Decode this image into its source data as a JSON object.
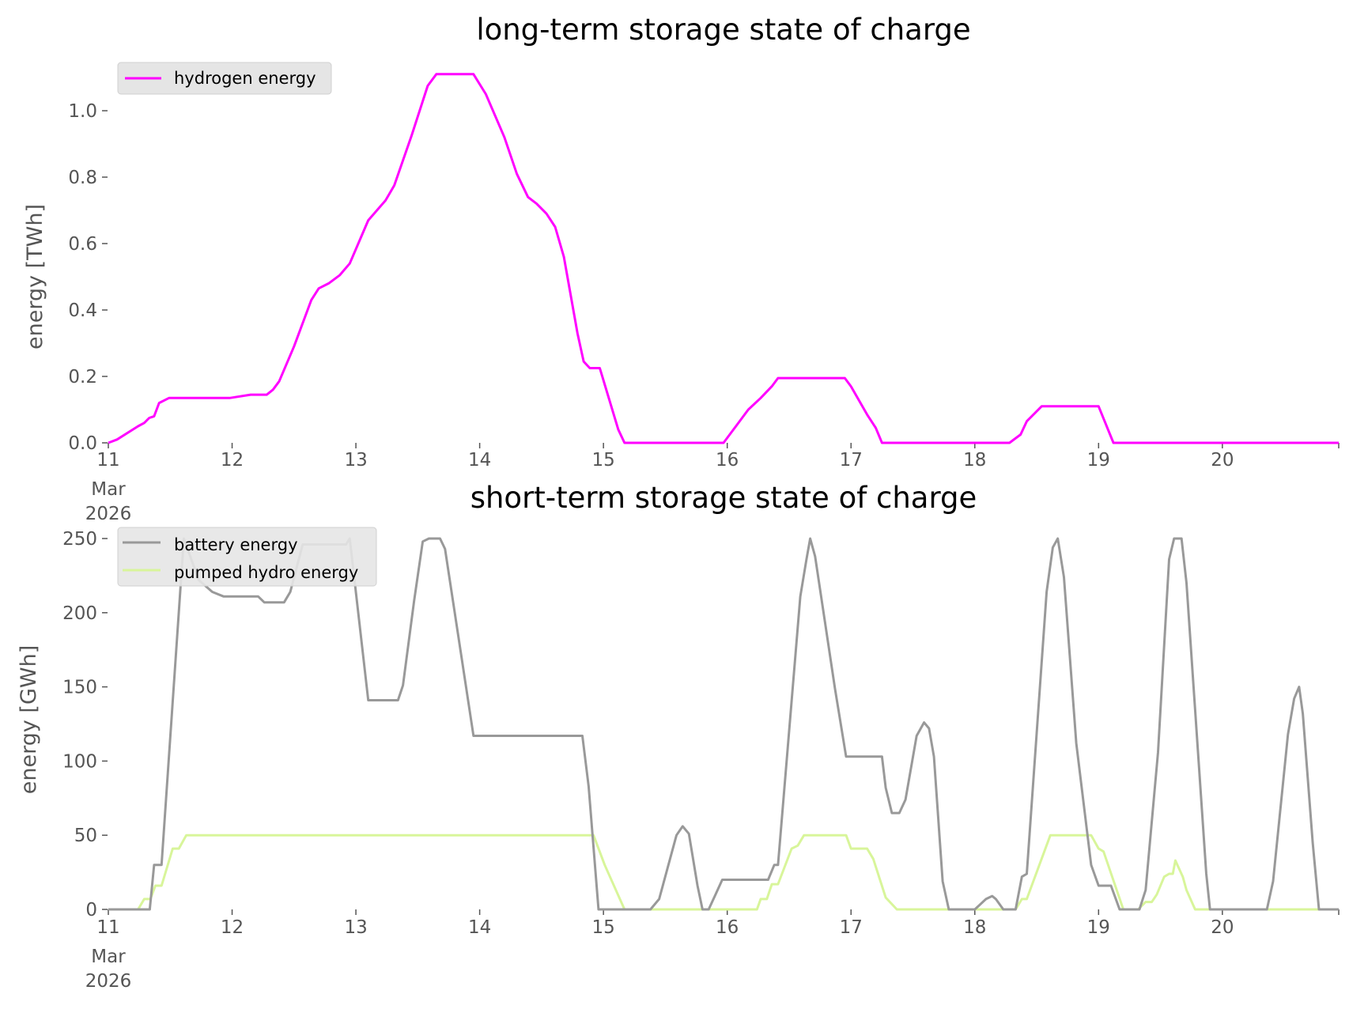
{
  "chart_data": [
    {
      "type": "line",
      "title": "long-term storage state of charge",
      "xlabel": "",
      "ylabel": "energy [TWh]",
      "x_unit": "days since 11 Mar 2026 00:00",
      "xlim": [
        0,
        9.94
      ],
      "ylim": [
        0,
        1.12
      ],
      "x_ticks": [
        "11",
        "12",
        "13",
        "14",
        "15",
        "16",
        "17",
        "18",
        "19",
        "20"
      ],
      "x_tick_sub": [
        "Mar",
        "2026"
      ],
      "y_ticks": [
        "0.0",
        "0.2",
        "0.4",
        "0.6",
        "0.8",
        "1.0"
      ],
      "y_tick_values": [
        0,
        0.2,
        0.4,
        0.6,
        0.8,
        1.0
      ],
      "legend_position": "top-left",
      "grid": false,
      "series": [
        {
          "name": "hydrogen energy",
          "color": "#ff00ff",
          "x": [
            0,
            0.07,
            0.24,
            0.29,
            0.33,
            0.37,
            0.41,
            0.49,
            0.98,
            1.15,
            1.28,
            1.33,
            1.38,
            1.5,
            1.64,
            1.7,
            1.78,
            1.87,
            1.95,
            2.1,
            2.24,
            2.31,
            2.45,
            2.58,
            2.65,
            2.95,
            3.05,
            3.2,
            3.3,
            3.39,
            3.46,
            3.54,
            3.61,
            3.68,
            3.79,
            3.84,
            3.89,
            3.97,
            4.12,
            4.17,
            4.97,
            5.06,
            5.17,
            5.27,
            5.36,
            5.41,
            5.95,
            6.0,
            6.13,
            6.2,
            6.25,
            7.28,
            7.37,
            7.42,
            7.54,
            8.0,
            8.12,
            9.94
          ],
          "y": [
            0,
            0.01,
            0.05,
            0.06,
            0.075,
            0.08,
            0.12,
            0.135,
            0.135,
            0.145,
            0.145,
            0.16,
            0.185,
            0.29,
            0.43,
            0.465,
            0.48,
            0.505,
            0.54,
            0.67,
            0.73,
            0.775,
            0.925,
            1.075,
            1.11,
            1.11,
            1.05,
            0.92,
            0.81,
            0.74,
            0.72,
            0.69,
            0.65,
            0.56,
            0.33,
            0.245,
            0.225,
            0.225,
            0.04,
            0,
            0,
            0.045,
            0.1,
            0.135,
            0.17,
            0.195,
            0.195,
            0.17,
            0.085,
            0.045,
            0,
            0,
            0.025,
            0.065,
            0.11,
            0.11,
            0,
            0
          ]
        }
      ]
    },
    {
      "type": "line",
      "title": "short-term storage state of charge",
      "xlabel": "",
      "ylabel": "energy [GWh]",
      "x_unit": "days since 11 Mar 2026 00:00",
      "xlim": [
        0,
        9.94
      ],
      "ylim": [
        0,
        250
      ],
      "x_ticks": [
        "11",
        "12",
        "13",
        "14",
        "15",
        "16",
        "17",
        "18",
        "19",
        "20"
      ],
      "x_tick_sub": [
        "Mar",
        "2026"
      ],
      "y_ticks": [
        "0",
        "50",
        "100",
        "150",
        "200",
        "250"
      ],
      "y_tick_values": [
        0,
        50,
        100,
        150,
        200,
        250
      ],
      "legend_position": "top-left",
      "grid": false,
      "series": [
        {
          "name": "battery energy",
          "color": "#999999",
          "x": [
            0,
            0.335,
            0.37,
            0.43,
            0.61,
            0.73,
            0.84,
            0.93,
            1.21,
            1.26,
            1.42,
            1.47,
            1.57,
            1.92,
            1.95,
            2.1,
            2.34,
            2.38,
            2.47,
            2.54,
            2.59,
            2.68,
            2.72,
            2.95,
            3.83,
            3.88,
            3.96,
            4.38,
            4.45,
            4.59,
            4.64,
            4.69,
            4.76,
            4.8,
            4.85,
            4.9,
            4.96,
            5.33,
            5.38,
            5.41,
            5.59,
            5.64,
            5.67,
            5.71,
            5.87,
            5.96,
            6.25,
            6.28,
            6.33,
            6.39,
            6.44,
            6.53,
            6.59,
            6.63,
            6.67,
            6.74,
            6.79,
            7.0,
            7.09,
            7.14,
            7.17,
            7.23,
            7.33,
            7.38,
            7.42,
            7.58,
            7.63,
            7.67,
            7.72,
            7.82,
            7.94,
            8.0,
            8.1,
            8.17,
            8.33,
            8.38,
            8.48,
            8.57,
            8.61,
            8.67,
            8.71,
            8.87,
            8.9,
            9.36,
            9.41,
            9.53,
            9.58,
            9.62,
            9.65,
            9.73,
            9.78,
            9.94
          ],
          "y": [
            0,
            0,
            30,
            30,
            250,
            222,
            214,
            211,
            211,
            207,
            207,
            214,
            246,
            246,
            250,
            141,
            141,
            151,
            208,
            248,
            250,
            250,
            243,
            117,
            117,
            83,
            0,
            0,
            7,
            50,
            56,
            51,
            16,
            0,
            0,
            9,
            20,
            20,
            30,
            30,
            211,
            236,
            250,
            238,
            149,
            103,
            103,
            82,
            65,
            65,
            74,
            117,
            126,
            122,
            103,
            19,
            0,
            0,
            7,
            9,
            7,
            0,
            0,
            22,
            24,
            214,
            244,
            250,
            224,
            112,
            30,
            16,
            16,
            0,
            0,
            13,
            106,
            236,
            250,
            250,
            220,
            24,
            0,
            0,
            19,
            118,
            142,
            150,
            132,
            45,
            0,
            0
          ]
        },
        {
          "name": "pumped hydro energy",
          "color": "#d8f59a",
          "x": [
            0,
            0.24,
            0.29,
            0.34,
            0.38,
            0.43,
            0.52,
            0.57,
            0.63,
            3.92,
            4.01,
            4.17,
            5.24,
            5.27,
            5.32,
            5.36,
            5.41,
            5.52,
            5.57,
            5.62,
            5.96,
            6.0,
            6.13,
            6.18,
            6.28,
            6.37,
            7.33,
            7.38,
            7.42,
            7.61,
            7.94,
            8.0,
            8.04,
            8.2,
            8.32,
            8.38,
            8.43,
            8.47,
            8.53,
            8.57,
            8.6,
            8.62,
            8.68,
            8.71,
            8.78,
            9.94
          ],
          "y": [
            0,
            0,
            7,
            7,
            16,
            16,
            41,
            41,
            50,
            50,
            30,
            0,
            0,
            7,
            7,
            17,
            17,
            41,
            43,
            50,
            50,
            41,
            41,
            34,
            8,
            0,
            0,
            7,
            7,
            50,
            50,
            41,
            39,
            0,
            0,
            5,
            5,
            10,
            22,
            24,
            24,
            33,
            22,
            13,
            0,
            0
          ]
        }
      ]
    }
  ]
}
